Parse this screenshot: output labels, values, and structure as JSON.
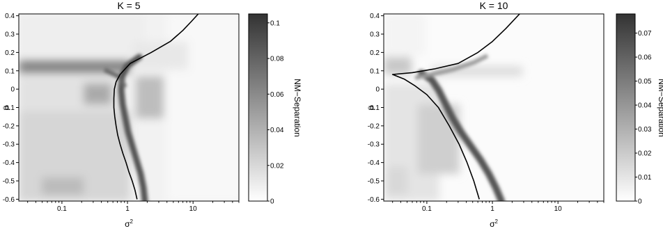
{
  "chart_data": [
    {
      "type": "heatmap",
      "title": "K = 5",
      "xlabel_base": "σ",
      "xlabel_sup": "2",
      "ylabel": "μ",
      "colorbar_label": "NM−Separation",
      "x_scale": "log",
      "xlim": [
        0.022,
        50
      ],
      "ylim": [
        -0.61,
        0.41
      ],
      "x_ticks": [
        0.1,
        1,
        10
      ],
      "x_tick_labels": [
        "0.1",
        "1",
        "10"
      ],
      "y_ticks": [
        -0.6,
        -0.5,
        -0.4,
        -0.3,
        -0.2,
        -0.1,
        0,
        0.1,
        0.2,
        0.3,
        0.4
      ],
      "y_tick_labels": [
        "-0.6",
        "-0.5",
        "-0.4",
        "-0.3",
        "-0.2",
        "-0.1",
        "0",
        "0.1",
        "0.2",
        "0.3",
        "0.4"
      ],
      "colorbar_range": [
        0,
        0.105
      ],
      "colorbar_ticks": [
        0,
        0.02,
        0.04,
        0.06,
        0.08,
        0.1
      ],
      "colorbar_tick_labels": [
        "0",
        "0.02",
        "0.04",
        "0.06",
        "0.08",
        "0.1"
      ],
      "colormap": [
        "#ffffff",
        "#333333"
      ],
      "boundary_curve": [
        {
          "x": 1.4,
          "y": -0.6
        },
        {
          "x": 1.3,
          "y": -0.55
        },
        {
          "x": 1.18,
          "y": -0.5
        },
        {
          "x": 1.05,
          "y": -0.45
        },
        {
          "x": 0.95,
          "y": -0.4
        },
        {
          "x": 0.85,
          "y": -0.35
        },
        {
          "x": 0.77,
          "y": -0.3
        },
        {
          "x": 0.71,
          "y": -0.25
        },
        {
          "x": 0.67,
          "y": -0.2
        },
        {
          "x": 0.64,
          "y": -0.15
        },
        {
          "x": 0.62,
          "y": -0.1
        },
        {
          "x": 0.62,
          "y": -0.05
        },
        {
          "x": 0.63,
          "y": 0
        },
        {
          "x": 0.67,
          "y": 0.04
        },
        {
          "x": 0.77,
          "y": 0.08
        },
        {
          "x": 1.1,
          "y": 0.14
        },
        {
          "x": 2.3,
          "y": 0.2
        },
        {
          "x": 4.5,
          "y": 0.26
        },
        {
          "x": 7.0,
          "y": 0.32
        },
        {
          "x": 9.5,
          "y": 0.37
        },
        {
          "x": 12,
          "y": 0.41
        }
      ]
    },
    {
      "type": "heatmap",
      "title": "K = 10",
      "xlabel_base": "σ",
      "xlabel_sup": "2",
      "ylabel": "μ",
      "colorbar_label": "NM−Separation",
      "x_scale": "log",
      "xlim": [
        0.022,
        50
      ],
      "ylim": [
        -0.61,
        0.41
      ],
      "x_ticks": [
        0.1,
        1,
        10
      ],
      "x_tick_labels": [
        "0.1",
        "1",
        "10"
      ],
      "y_ticks": [
        -0.6,
        -0.5,
        -0.4,
        -0.3,
        -0.2,
        -0.1,
        0,
        0.1,
        0.2,
        0.3,
        0.4
      ],
      "y_tick_labels": [
        "-0.6",
        "-0.5",
        "-0.4",
        "-0.3",
        "-0.2",
        "-0.1",
        "0",
        "0.1",
        "0.2",
        "0.3",
        "0.4"
      ],
      "colorbar_range": [
        0,
        0.078
      ],
      "colorbar_ticks": [
        0,
        0.01,
        0.02,
        0.03,
        0.04,
        0.05,
        0.06,
        0.07
      ],
      "colorbar_tick_labels": [
        "0",
        "0.01",
        "0.02",
        "0.03",
        "0.04",
        "0.05",
        "0.06",
        "0.07"
      ],
      "colormap": [
        "#ffffff",
        "#333333"
      ],
      "boundary_curve": [
        {
          "x": 0.63,
          "y": -0.6
        },
        {
          "x": 0.52,
          "y": -0.5
        },
        {
          "x": 0.41,
          "y": -0.4
        },
        {
          "x": 0.31,
          "y": -0.3
        },
        {
          "x": 0.22,
          "y": -0.2
        },
        {
          "x": 0.15,
          "y": -0.1
        },
        {
          "x": 0.1,
          "y": -0.03
        },
        {
          "x": 0.065,
          "y": 0.02
        },
        {
          "x": 0.045,
          "y": 0.055
        },
        {
          "x": 0.03,
          "y": 0.08
        },
        {
          "x": 0.06,
          "y": 0.09
        },
        {
          "x": 0.13,
          "y": 0.11
        },
        {
          "x": 0.3,
          "y": 0.14
        },
        {
          "x": 0.6,
          "y": 0.2
        },
        {
          "x": 1.0,
          "y": 0.26
        },
        {
          "x": 1.6,
          "y": 0.33
        },
        {
          "x": 2.6,
          "y": 0.41
        }
      ]
    }
  ]
}
